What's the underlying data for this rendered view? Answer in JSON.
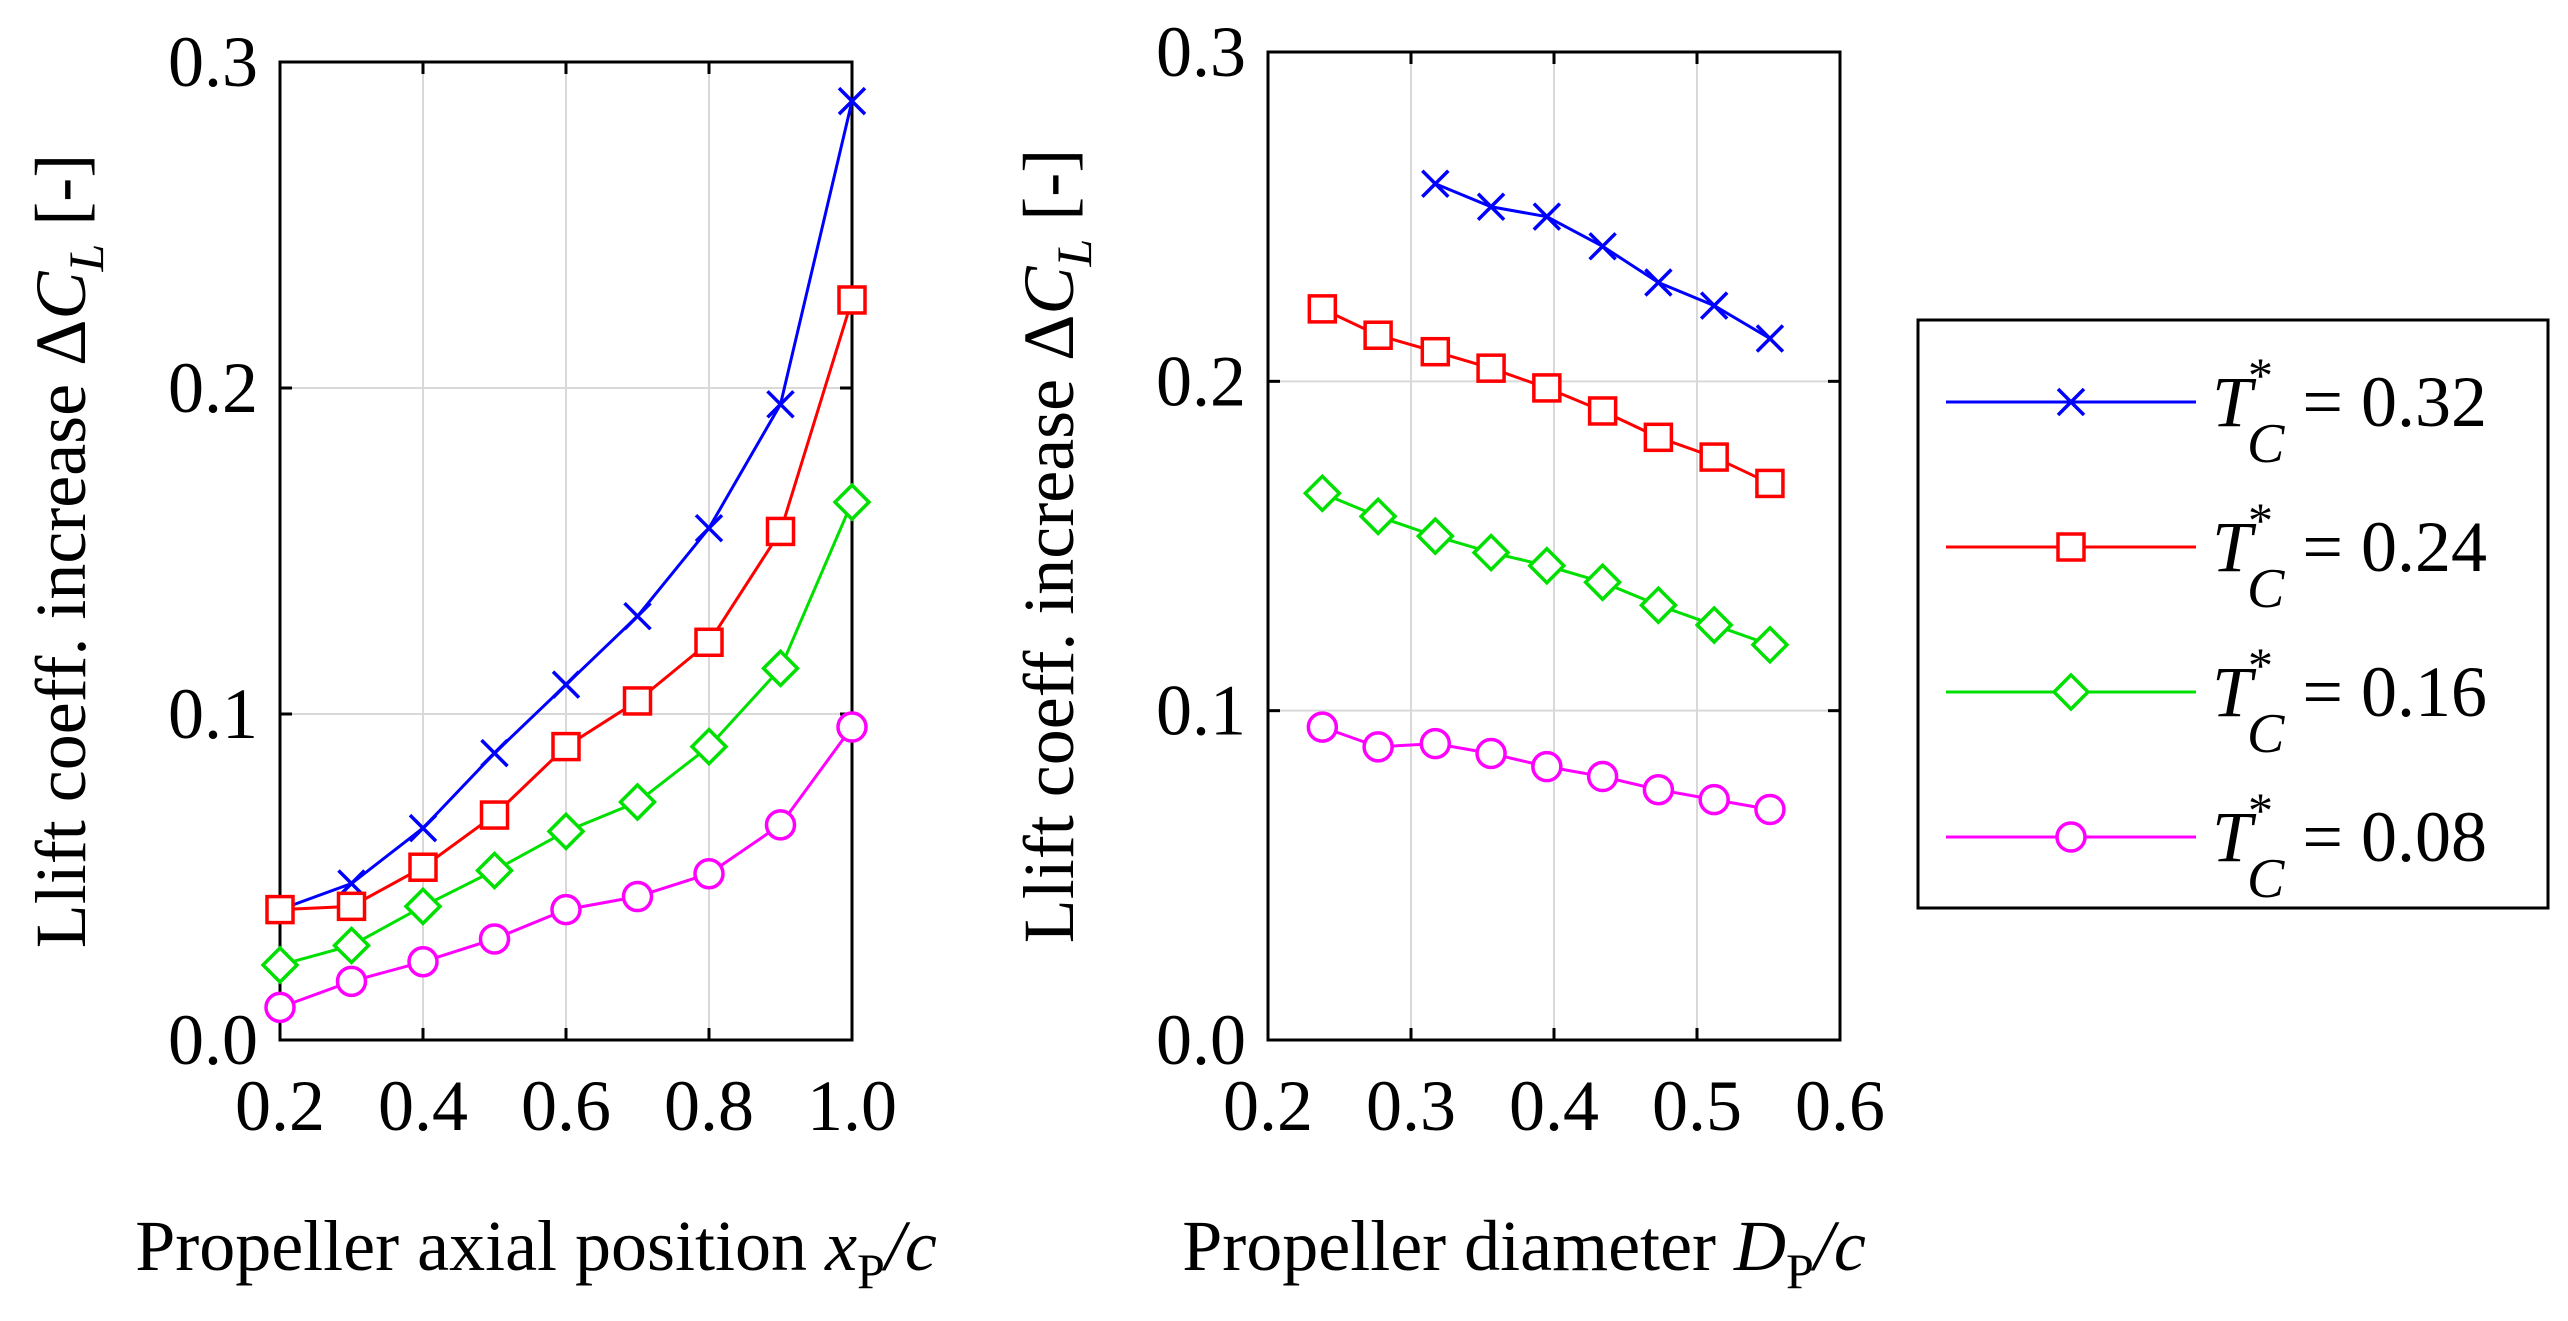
{
  "chart_data": [
    {
      "type": "line",
      "xlabel_main": "Propeller axial position ",
      "xlabel_var": "x",
      "xlabel_sub": "P",
      "xlabel_tail": "/c",
      "ylabel_main": "Llift coeff. increase Δ",
      "ylabel_var": "C",
      "ylabel_sub": "L",
      "ylabel_tail": " [-]",
      "xlim": [
        0.2,
        1.0
      ],
      "ylim": [
        0.0,
        0.3
      ],
      "xticks": [
        "0.2",
        "0.4",
        "0.6",
        "0.8",
        "1.0"
      ],
      "xtick_values": [
        0.2,
        0.4,
        0.6,
        0.8,
        1.0
      ],
      "yticks": [
        "0.0",
        "0.1",
        "0.2",
        "0.3"
      ],
      "ytick_values": [
        0.0,
        0.1,
        0.2,
        0.3
      ],
      "grid": true,
      "x": [
        0.2,
        0.3,
        0.4,
        0.5,
        0.6,
        0.7,
        0.8,
        0.9,
        1.0
      ],
      "series": [
        {
          "name": "0.32",
          "color": "#0000ff",
          "marker": "x",
          "values": [
            0.04,
            0.048,
            0.065,
            0.088,
            0.109,
            0.13,
            0.157,
            0.195,
            0.288
          ]
        },
        {
          "name": "0.24",
          "color": "#ff0000",
          "marker": "square",
          "values": [
            0.04,
            0.041,
            0.053,
            0.069,
            0.09,
            0.104,
            0.122,
            0.156,
            0.227
          ]
        },
        {
          "name": "0.16",
          "color": "#00e000",
          "marker": "diamond",
          "values": [
            0.023,
            0.029,
            0.041,
            0.052,
            0.064,
            0.073,
            0.09,
            0.114,
            0.165
          ]
        },
        {
          "name": "0.08",
          "color": "#ff00ff",
          "marker": "circle",
          "values": [
            0.01,
            0.018,
            0.024,
            0.031,
            0.04,
            0.044,
            0.051,
            0.066,
            0.096
          ]
        }
      ]
    },
    {
      "type": "line",
      "xlabel_main": "Propeller diameter ",
      "xlabel_var": "D",
      "xlabel_sub": "P",
      "xlabel_tail": "/c",
      "ylabel_main": "Llift coeff. increase Δ",
      "ylabel_var": "C",
      "ylabel_sub": "L",
      "ylabel_tail": " [-]",
      "xlim": [
        0.2,
        0.6
      ],
      "ylim": [
        0.0,
        0.3
      ],
      "xticks": [
        "0.2",
        "0.3",
        "0.4",
        "0.5",
        "0.6"
      ],
      "xtick_values": [
        0.2,
        0.3,
        0.4,
        0.5,
        0.6
      ],
      "yticks": [
        "0.0",
        "0.1",
        "0.2",
        "0.3"
      ],
      "ytick_values": [
        0.0,
        0.1,
        0.2,
        0.3
      ],
      "grid": true,
      "series": [
        {
          "name": "0.32",
          "color": "#0000ff",
          "marker": "x",
          "x": [
            0.317,
            0.356,
            0.395,
            0.434,
            0.473,
            0.512,
            0.551
          ],
          "values": [
            0.26,
            0.253,
            0.25,
            0.241,
            0.23,
            0.223,
            0.213
          ]
        },
        {
          "name": "0.24",
          "color": "#ff0000",
          "marker": "square",
          "x": [
            0.238,
            0.277,
            0.317,
            0.356,
            0.395,
            0.434,
            0.473,
            0.512,
            0.551
          ],
          "values": [
            0.222,
            0.214,
            0.209,
            0.204,
            0.198,
            0.191,
            0.183,
            0.177,
            0.169
          ]
        },
        {
          "name": "0.16",
          "color": "#00e000",
          "marker": "diamond",
          "x": [
            0.238,
            0.277,
            0.317,
            0.356,
            0.395,
            0.434,
            0.473,
            0.512,
            0.551
          ],
          "values": [
            0.166,
            0.159,
            0.153,
            0.148,
            0.144,
            0.139,
            0.132,
            0.126,
            0.12
          ]
        },
        {
          "name": "0.08",
          "color": "#ff00ff",
          "marker": "circle",
          "x": [
            0.238,
            0.277,
            0.317,
            0.356,
            0.395,
            0.434,
            0.473,
            0.512,
            0.551
          ],
          "values": [
            0.095,
            0.089,
            0.09,
            0.087,
            0.083,
            0.08,
            0.076,
            0.073,
            0.07
          ]
        }
      ]
    }
  ],
  "legend": {
    "placement": "right",
    "var": "T",
    "sup": "*",
    "sub": "C",
    "entries": [
      {
        "value": "= 0.32",
        "color": "#0000ff",
        "marker": "x"
      },
      {
        "value": "= 0.24",
        "color": "#ff0000",
        "marker": "square"
      },
      {
        "value": "= 0.16",
        "color": "#00e000",
        "marker": "diamond"
      },
      {
        "value": "= 0.08",
        "color": "#ff00ff",
        "marker": "circle"
      }
    ]
  }
}
